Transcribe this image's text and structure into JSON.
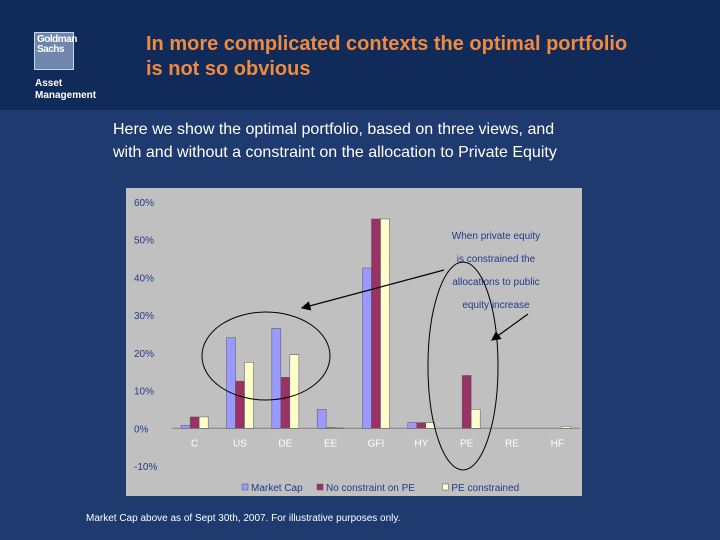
{
  "logo": {
    "line1": "Goldman",
    "line2": "Sachs",
    "sub1": "Asset",
    "sub2": "Management"
  },
  "title": {
    "line1": "In more complicated contexts the optimal portfolio",
    "line2": "is not so obvious"
  },
  "subtitle": {
    "line1": "Here we show the optimal portfolio, based on three views, and",
    "line2": "with and without a constraint on the allocation to Private Equity"
  },
  "footnote": "Market Cap above as of Sept 30th, 2007. For illustrative purposes only.",
  "colors": {
    "background": "#1e3a6e",
    "header": "#102a5a",
    "title": "#f08a3c",
    "market_cap": "#9999ff",
    "no_constraint": "#993366",
    "pe_constrained": "#ffffcc"
  },
  "chart_data": {
    "type": "bar",
    "categories": [
      "C",
      "US",
      "DE",
      "EE",
      "GFI",
      "HY",
      "PE",
      "RE",
      "HF"
    ],
    "series": [
      {
        "name": "Market Cap",
        "color": "#9999ff",
        "values": [
          0.8,
          24,
          26.5,
          5,
          42.5,
          1.5,
          0,
          0,
          0
        ]
      },
      {
        "name": "No constraint on PE",
        "color": "#993366",
        "values": [
          3,
          12.5,
          13.5,
          0.2,
          55.5,
          1.5,
          14,
          0,
          0
        ]
      },
      {
        "name": "PE constrained",
        "color": "#ffffcc",
        "values": [
          3,
          17.5,
          19.5,
          0.1,
          55.5,
          1.5,
          5,
          0,
          0.5
        ]
      }
    ],
    "yticks": [
      "-10%",
      "0%",
      "10%",
      "20%",
      "30%",
      "40%",
      "50%",
      "60%"
    ],
    "ylim": [
      -10,
      60
    ],
    "grid": false,
    "legend_position": "bottom",
    "annotation": [
      "When private equity",
      "is constrained the",
      "allocations to public",
      "equity increase"
    ]
  }
}
